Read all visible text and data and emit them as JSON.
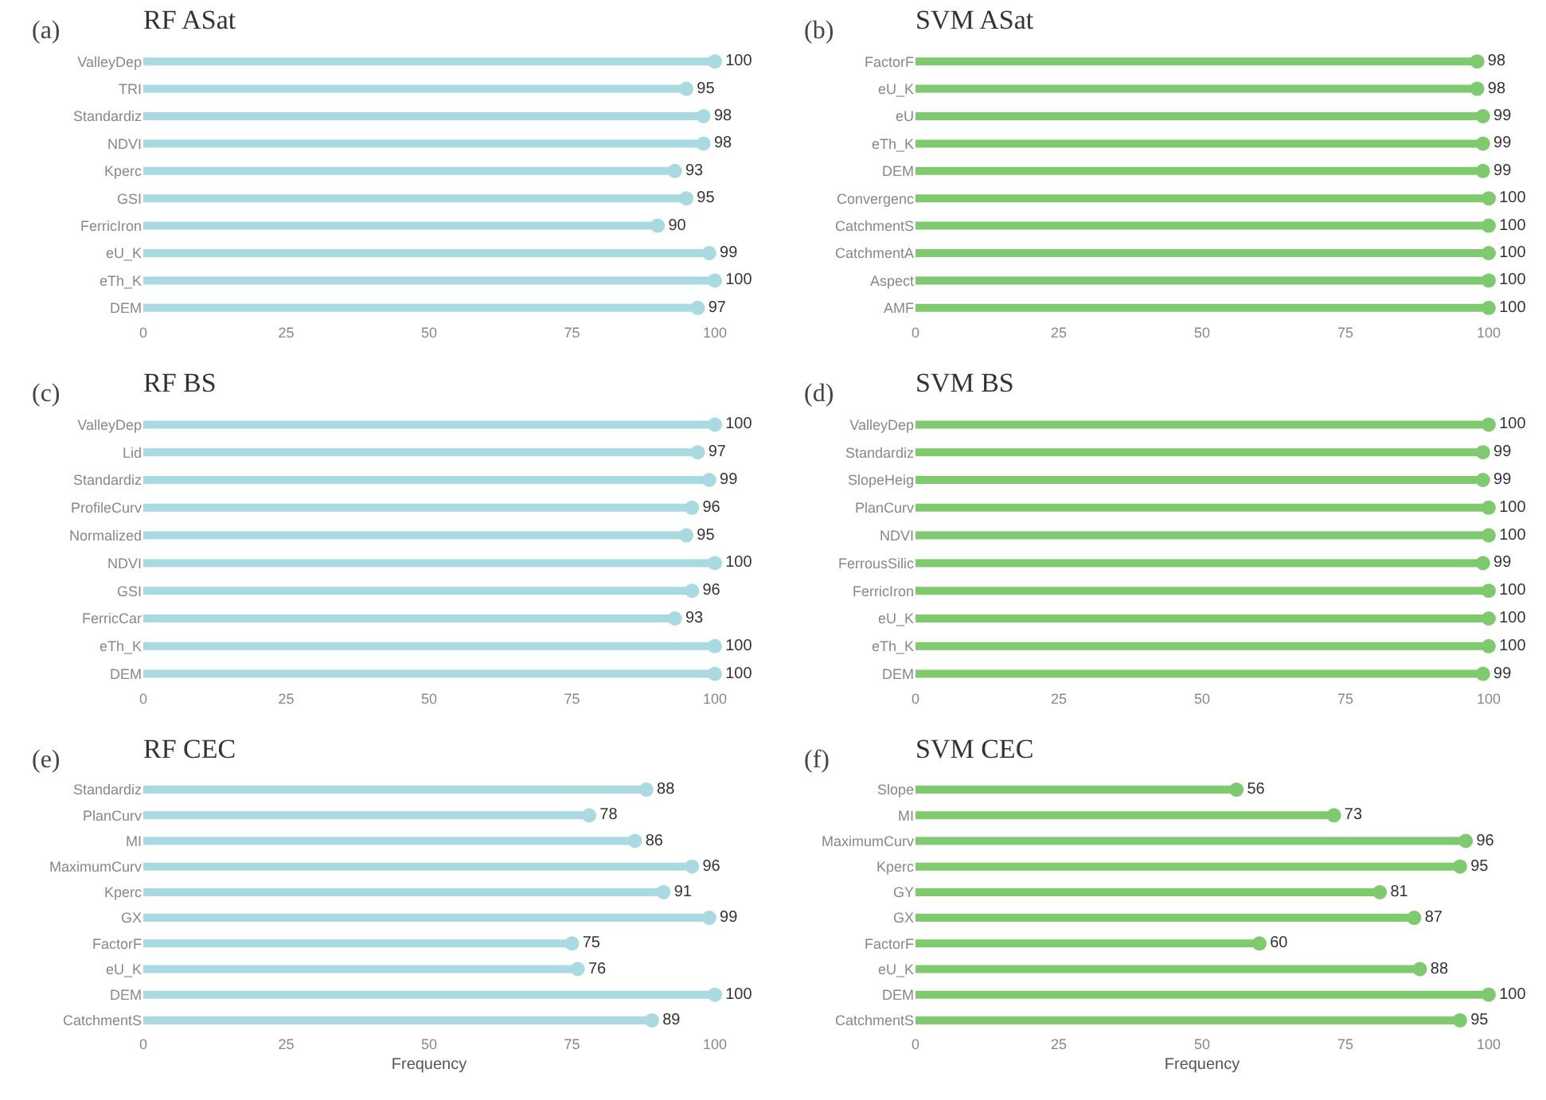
{
  "chart_data": [
    {
      "type": "lollipop",
      "orientation": "horizontal",
      "title": "RF ASat",
      "annotations": [
        "(a)"
      ],
      "categories": [
        "ValleyDep",
        "TRI",
        "Standardiz",
        "NDVI",
        "Kperc",
        "GSI",
        "FerricIron",
        "eU_K",
        "eTh_K",
        "DEM"
      ],
      "values": [
        100,
        95,
        98,
        98,
        93,
        95,
        90,
        99,
        100,
        97
      ],
      "color": "#a9d9e1",
      "marker": "circle",
      "data_labels": true,
      "xlim": [
        0,
        100
      ],
      "xticks": [
        0,
        25,
        50,
        75,
        100
      ]
    },
    {
      "type": "lollipop",
      "orientation": "horizontal",
      "title": "SVM ASat",
      "annotations": [
        "(b)"
      ],
      "categories": [
        "FactorF",
        "eU_K",
        "eU",
        "eTh_K",
        "DEM",
        "Convergenc",
        "CatchmentS",
        "CatchmentA",
        "Aspect",
        "AMF"
      ],
      "values": [
        98,
        98,
        99,
        99,
        99,
        100,
        100,
        100,
        100,
        100
      ],
      "color": "#7fca6e",
      "marker": "circle",
      "data_labels": true,
      "xlim": [
        0,
        100
      ],
      "xticks": [
        0,
        25,
        50,
        75,
        100
      ]
    },
    {
      "type": "lollipop",
      "orientation": "horizontal",
      "title": "RF BS",
      "annotations": [
        "(c)"
      ],
      "categories": [
        "ValleyDep",
        "Lid",
        "Standardiz",
        "ProfileCurv",
        "Normalized",
        "NDVI",
        "GSI",
        "FerricCar",
        "eTh_K",
        "DEM"
      ],
      "values": [
        100,
        97,
        99,
        96,
        95,
        100,
        96,
        93,
        100,
        100
      ],
      "color": "#a9d9e1",
      "marker": "circle",
      "data_labels": true,
      "xlim": [
        0,
        100
      ],
      "xticks": [
        0,
        25,
        50,
        75,
        100
      ]
    },
    {
      "type": "lollipop",
      "orientation": "horizontal",
      "title": "SVM BS",
      "annotations": [
        "(d)"
      ],
      "categories": [
        "ValleyDep",
        "Standardiz",
        "SlopeHeig",
        "PlanCurv",
        "NDVI",
        "FerrousSilic",
        "FerricIron",
        "eU_K",
        "eTh_K",
        "DEM"
      ],
      "values": [
        100,
        99,
        99,
        100,
        100,
        99,
        100,
        100,
        100,
        99
      ],
      "color": "#7fca6e",
      "marker": "circle",
      "data_labels": true,
      "xlim": [
        0,
        100
      ],
      "xticks": [
        0,
        25,
        50,
        75,
        100
      ]
    },
    {
      "type": "lollipop",
      "orientation": "horizontal",
      "title": "RF CEC",
      "annotations": [
        "(e)"
      ],
      "xlabel": "Frequency",
      "categories": [
        "Standardiz",
        "PlanCurv",
        "MI",
        "MaximumCurv",
        "Kperc",
        "GX",
        "FactorF",
        "eU_K",
        "DEM",
        "CatchmentS"
      ],
      "values": [
        88,
        78,
        86,
        96,
        91,
        99,
        75,
        76,
        100,
        89
      ],
      "color": "#a9d9e1",
      "marker": "circle",
      "data_labels": true,
      "xlim": [
        0,
        100
      ],
      "xticks": [
        0,
        25,
        50,
        75,
        100
      ]
    },
    {
      "type": "lollipop",
      "orientation": "horizontal",
      "title": "SVM CEC",
      "annotations": [
        "(f)"
      ],
      "xlabel": "Frequency",
      "categories": [
        "Slope",
        "MI",
        "MaximumCurv",
        "Kperc",
        "GY",
        "GX",
        "FactorF",
        "eU_K",
        "DEM",
        "CatchmentS"
      ],
      "values": [
        56,
        73,
        96,
        95,
        81,
        87,
        60,
        88,
        100,
        95
      ],
      "color": "#7fca6e",
      "marker": "circle",
      "data_labels": true,
      "xlim": [
        0,
        100
      ],
      "xticks": [
        0,
        25,
        50,
        75,
        100
      ]
    }
  ]
}
